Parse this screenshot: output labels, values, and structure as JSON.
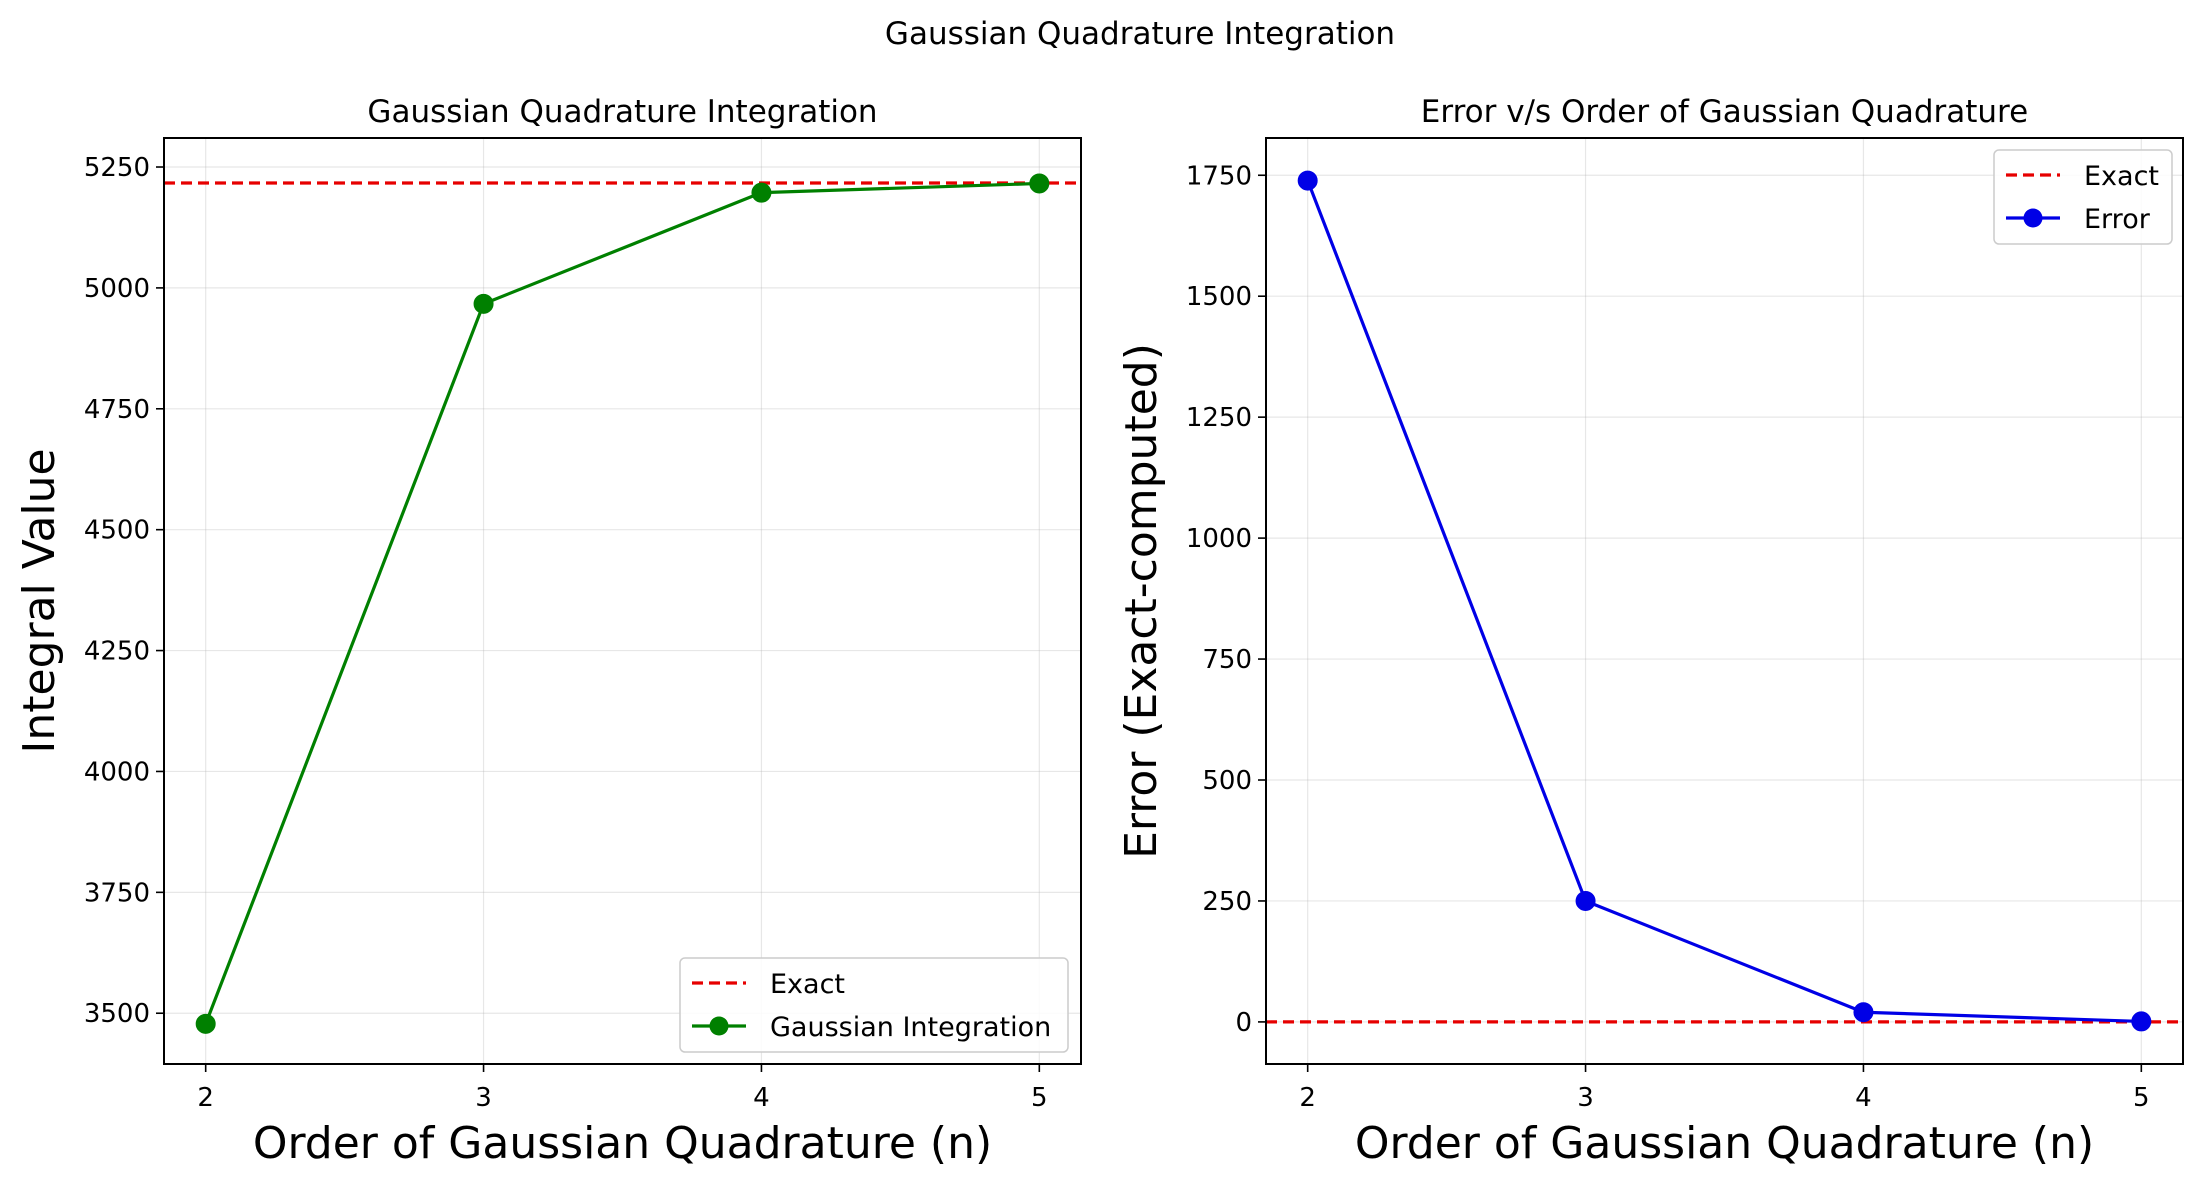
{
  "figure": {
    "suptitle": "Gaussian Quadrature Integration"
  },
  "chart_data": [
    {
      "type": "line",
      "title": "Gaussian Quadrature Integration",
      "xlabel": "Order of Gaussian Quadrature (n)",
      "ylabel": "Integral Value",
      "x": [
        2,
        3,
        4,
        5
      ],
      "xlim": [
        1.85,
        5.15
      ],
      "ylim": [
        3395,
        5310
      ],
      "xticks": [
        2,
        3,
        4,
        5
      ],
      "yticks": [
        3500,
        3750,
        4000,
        4250,
        4500,
        4750,
        5000,
        5250
      ],
      "grid": true,
      "legend_position": "lower right",
      "reference_line": {
        "name": "Exact",
        "value": 5217,
        "color": "#e60000",
        "style": "dashed"
      },
      "series": [
        {
          "name": "Gaussian Integration",
          "values": [
            3478,
            4967,
            5197,
            5216
          ],
          "color": "#008000",
          "marker": "circle"
        }
      ]
    },
    {
      "type": "line",
      "title": "Error v/s Order of Gaussian Quadrature",
      "xlabel": "Order of Gaussian Quadrature (n)",
      "ylabel": "Error (Exact-computed)",
      "x": [
        2,
        3,
        4,
        5
      ],
      "xlim": [
        1.85,
        5.15
      ],
      "ylim": [
        -87,
        1827
      ],
      "xticks": [
        2,
        3,
        4,
        5
      ],
      "yticks": [
        0,
        250,
        500,
        750,
        1000,
        1250,
        1500,
        1750
      ],
      "grid": true,
      "legend_position": "upper right",
      "reference_line": {
        "name": "Exact",
        "value": 0,
        "color": "#e60000",
        "style": "dashed"
      },
      "series": [
        {
          "name": "Error",
          "values": [
            1739,
            250,
            20,
            1
          ],
          "color": "#0000e6",
          "marker": "circle"
        }
      ]
    }
  ]
}
